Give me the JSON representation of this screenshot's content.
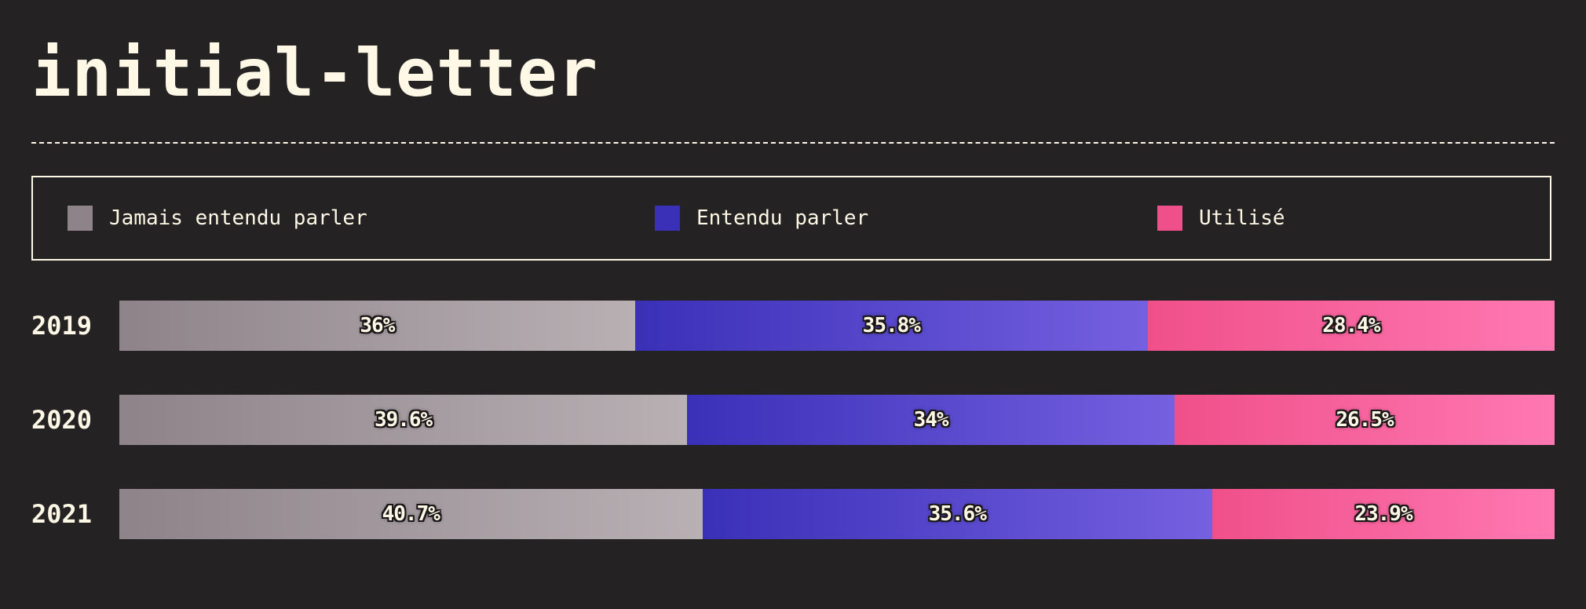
{
  "page": {
    "title": "initial-letter"
  },
  "legend": [
    {
      "key": "never",
      "label": "Jamais entendu parler",
      "color": "#8d8389"
    },
    {
      "key": "heard",
      "label": "Entendu parler",
      "color": "#3a30b8"
    },
    {
      "key": "used",
      "label": "Utilisé",
      "color": "#f0508a"
    }
  ],
  "colors": {
    "background": "#252223",
    "text": "#fff8e7",
    "never_gradient": [
      "#8d8389",
      "#b9b0b4"
    ],
    "heard_gradient": [
      "#3a30b8",
      "#7560e0"
    ],
    "used_gradient": [
      "#f0508a",
      "#ff78b2"
    ]
  },
  "chart_data": {
    "type": "bar",
    "orientation": "horizontal",
    "stacked": true,
    "normalized": true,
    "title": "initial-letter",
    "categories": [
      "2019",
      "2020",
      "2021"
    ],
    "series": [
      {
        "name": "Jamais entendu parler",
        "values": [
          36,
          39.6,
          40.7
        ],
        "labels": [
          "36%",
          "39.6%",
          "40.7%"
        ]
      },
      {
        "name": "Entendu parler",
        "values": [
          35.8,
          34,
          35.6
        ],
        "labels": [
          "35.8%",
          "34%",
          "35.6%"
        ]
      },
      {
        "name": "Utilisé",
        "values": [
          28.4,
          26.5,
          23.9
        ],
        "labels": [
          "28.4%",
          "26.5%",
          "23.9%"
        ]
      }
    ],
    "xlabel": "",
    "ylabel": "",
    "legend": "top",
    "grid": false
  }
}
